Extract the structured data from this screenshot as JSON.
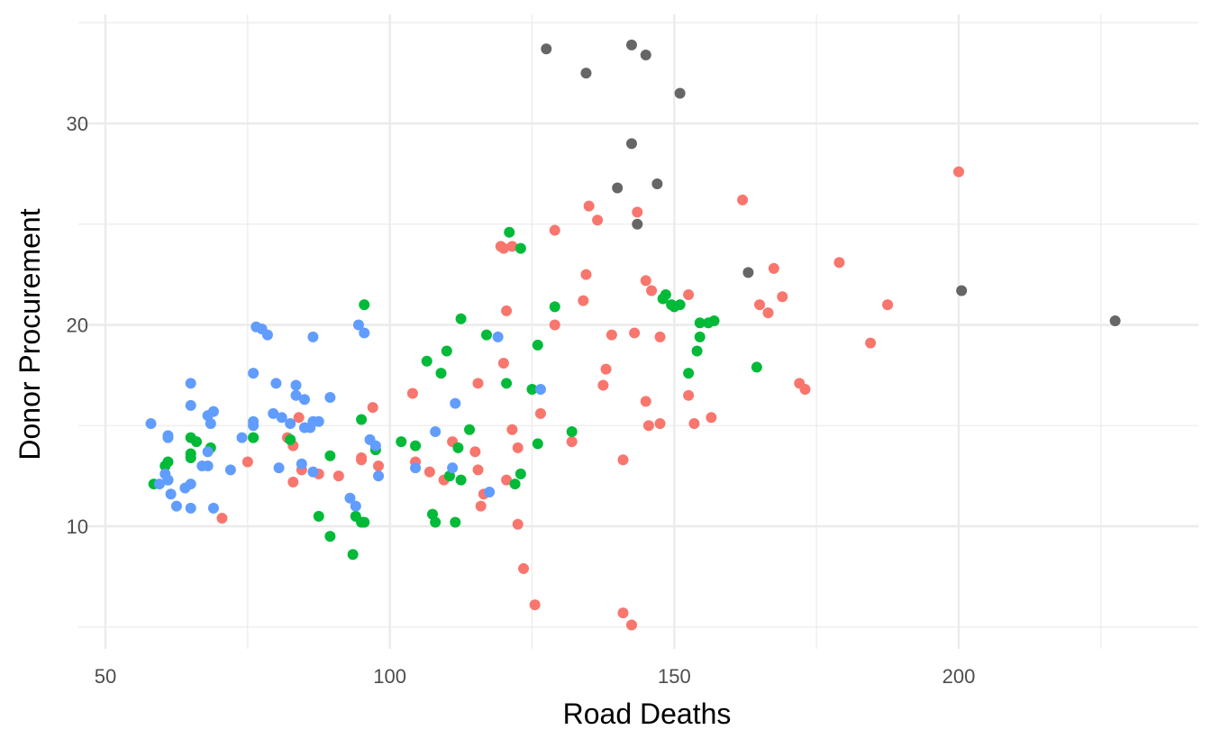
{
  "chart_data": {
    "type": "scatter",
    "title": "",
    "xlabel": "Road Deaths",
    "ylabel": "Donor Procurement",
    "xlim": [
      50,
      240
    ],
    "ylim": [
      4.5,
      35.0
    ],
    "x_ticks": [
      50,
      100,
      150,
      200
    ],
    "y_ticks": [
      10,
      20,
      30
    ],
    "x_tick_labels": [
      "50",
      "100",
      "150",
      "200"
    ],
    "y_tick_labels": [
      "10",
      "20",
      "30"
    ],
    "grid": true,
    "legend": "none",
    "colors": {
      "red": "#F8766D",
      "green": "#00BA38",
      "blue": "#619CFF",
      "grey": "#666666",
      "grid": "#ebebeb"
    },
    "series": [
      {
        "color": "#666666",
        "points": [
          [
            127.5,
            33.7
          ],
          [
            142.5,
            33.9
          ],
          [
            145.0,
            33.4
          ],
          [
            134.5,
            32.5
          ],
          [
            151.0,
            31.5
          ],
          [
            142.5,
            29.0
          ],
          [
            147.0,
            27.0
          ],
          [
            140.0,
            26.8
          ],
          [
            143.5,
            25.0
          ],
          [
            163.0,
            22.6
          ],
          [
            200.5,
            21.7
          ],
          [
            227.5,
            20.2
          ]
        ]
      },
      {
        "color": "#F8766D",
        "points": [
          [
            200.0,
            27.6
          ],
          [
            162.0,
            26.2
          ],
          [
            135.0,
            25.9
          ],
          [
            143.5,
            25.6
          ],
          [
            136.5,
            25.2
          ],
          [
            129.0,
            24.7
          ],
          [
            119.5,
            23.9
          ],
          [
            120.0,
            23.8
          ],
          [
            121.5,
            23.9
          ],
          [
            179.0,
            23.1
          ],
          [
            167.5,
            22.8
          ],
          [
            134.5,
            22.5
          ],
          [
            145.0,
            22.2
          ],
          [
            146.0,
            21.7
          ],
          [
            152.5,
            21.5
          ],
          [
            169.0,
            21.4
          ],
          [
            134.0,
            21.2
          ],
          [
            165.0,
            21.0
          ],
          [
            187.5,
            21.0
          ],
          [
            120.5,
            20.7
          ],
          [
            166.5,
            20.6
          ],
          [
            129.0,
            20.0
          ],
          [
            143.0,
            19.6
          ],
          [
            139.0,
            19.5
          ],
          [
            147.5,
            19.4
          ],
          [
            184.5,
            19.1
          ],
          [
            120.0,
            18.1
          ],
          [
            138.0,
            17.8
          ],
          [
            115.5,
            17.1
          ],
          [
            137.5,
            17.0
          ],
          [
            172.0,
            17.1
          ],
          [
            173.0,
            16.8
          ],
          [
            104.0,
            16.6
          ],
          [
            152.5,
            16.5
          ],
          [
            145.0,
            16.2
          ],
          [
            97.0,
            15.9
          ],
          [
            126.5,
            15.6
          ],
          [
            84.0,
            15.4
          ],
          [
            156.5,
            15.4
          ],
          [
            153.5,
            15.1
          ],
          [
            147.5,
            15.1
          ],
          [
            145.5,
            15.0
          ],
          [
            121.5,
            14.8
          ],
          [
            82.0,
            14.4
          ],
          [
            83.0,
            14.0
          ],
          [
            111.0,
            14.2
          ],
          [
            132.0,
            14.2
          ],
          [
            122.5,
            13.9
          ],
          [
            115.0,
            13.7
          ],
          [
            104.5,
            13.2
          ],
          [
            75.0,
            13.2
          ],
          [
            95.0,
            13.4
          ],
          [
            95.0,
            13.3
          ],
          [
            98.0,
            13.0
          ],
          [
            84.5,
            12.8
          ],
          [
            115.5,
            12.8
          ],
          [
            107.0,
            12.7
          ],
          [
            87.5,
            12.6
          ],
          [
            91.0,
            12.5
          ],
          [
            109.5,
            12.3
          ],
          [
            120.5,
            12.3
          ],
          [
            141.0,
            13.3
          ],
          [
            83.0,
            12.2
          ],
          [
            116.5,
            11.6
          ],
          [
            116.0,
            11.0
          ],
          [
            70.5,
            10.4
          ],
          [
            122.5,
            10.1
          ],
          [
            123.5,
            7.9
          ],
          [
            125.5,
            6.1
          ],
          [
            141.0,
            5.7
          ],
          [
            142.5,
            5.1
          ]
        ]
      },
      {
        "color": "#00BA38",
        "points": [
          [
            121.0,
            24.6
          ],
          [
            123.0,
            23.8
          ],
          [
            95.5,
            21.0
          ],
          [
            129.0,
            20.9
          ],
          [
            148.0,
            21.3
          ],
          [
            148.5,
            21.5
          ],
          [
            149.5,
            21.0
          ],
          [
            150.0,
            20.9
          ],
          [
            151.0,
            21.0
          ],
          [
            112.5,
            20.3
          ],
          [
            154.5,
            20.1
          ],
          [
            156.0,
            20.1
          ],
          [
            157.0,
            20.2
          ],
          [
            117.0,
            19.5
          ],
          [
            154.5,
            19.4
          ],
          [
            126.0,
            19.0
          ],
          [
            110.0,
            18.7
          ],
          [
            154.0,
            18.7
          ],
          [
            106.5,
            18.2
          ],
          [
            109.0,
            17.6
          ],
          [
            152.5,
            17.6
          ],
          [
            164.5,
            17.9
          ],
          [
            120.5,
            17.1
          ],
          [
            125.0,
            16.8
          ],
          [
            95.0,
            15.3
          ],
          [
            114.0,
            14.8
          ],
          [
            132.0,
            14.7
          ],
          [
            76.0,
            14.4
          ],
          [
            76.0,
            14.4
          ],
          [
            65.0,
            14.4
          ],
          [
            66.0,
            14.2
          ],
          [
            82.5,
            14.3
          ],
          [
            102.0,
            14.2
          ],
          [
            104.5,
            14.0
          ],
          [
            126.0,
            14.1
          ],
          [
            68.5,
            13.9
          ],
          [
            112.0,
            13.9
          ],
          [
            65.0,
            13.6
          ],
          [
            65.0,
            13.4
          ],
          [
            97.5,
            13.8
          ],
          [
            89.5,
            13.5
          ],
          [
            61.0,
            13.2
          ],
          [
            60.5,
            13.0
          ],
          [
            61.0,
            12.3
          ],
          [
            110.5,
            12.5
          ],
          [
            112.5,
            12.3
          ],
          [
            123.0,
            12.6
          ],
          [
            122.0,
            12.1
          ],
          [
            58.5,
            12.1
          ],
          [
            87.5,
            10.5
          ],
          [
            107.5,
            10.6
          ],
          [
            108.0,
            10.2
          ],
          [
            111.5,
            10.2
          ],
          [
            94.0,
            10.5
          ],
          [
            95.0,
            10.2
          ],
          [
            95.5,
            10.2
          ],
          [
            89.5,
            9.5
          ],
          [
            93.5,
            8.6
          ]
        ]
      },
      {
        "color": "#619CFF",
        "points": [
          [
            76.5,
            19.9
          ],
          [
            77.5,
            19.8
          ],
          [
            78.5,
            19.5
          ],
          [
            94.5,
            20.0
          ],
          [
            95.5,
            19.6
          ],
          [
            86.5,
            19.4
          ],
          [
            119.0,
            19.4
          ],
          [
            76.0,
            17.6
          ],
          [
            80.0,
            17.1
          ],
          [
            83.5,
            17.0
          ],
          [
            65.0,
            17.1
          ],
          [
            83.5,
            16.5
          ],
          [
            85.0,
            16.3
          ],
          [
            89.5,
            16.4
          ],
          [
            65.0,
            16.0
          ],
          [
            111.5,
            16.1
          ],
          [
            69.0,
            15.7
          ],
          [
            68.0,
            15.5
          ],
          [
            79.5,
            15.6
          ],
          [
            81.0,
            15.4
          ],
          [
            82.5,
            15.1
          ],
          [
            68.5,
            15.1
          ],
          [
            76.0,
            15.2
          ],
          [
            76.0,
            15.0
          ],
          [
            85.0,
            14.9
          ],
          [
            86.0,
            14.9
          ],
          [
            86.5,
            15.2
          ],
          [
            87.5,
            15.2
          ],
          [
            58.0,
            15.1
          ],
          [
            61.0,
            14.5
          ],
          [
            61.0,
            14.4
          ],
          [
            74.0,
            14.4
          ],
          [
            96.5,
            14.3
          ],
          [
            97.5,
            14.0
          ],
          [
            108.0,
            14.7
          ],
          [
            126.5,
            16.8
          ],
          [
            68.0,
            13.7
          ],
          [
            67.0,
            13.0
          ],
          [
            68.0,
            13.0
          ],
          [
            72.0,
            12.8
          ],
          [
            80.5,
            12.9
          ],
          [
            84.5,
            13.1
          ],
          [
            86.5,
            12.7
          ],
          [
            98.0,
            12.5
          ],
          [
            104.5,
            12.9
          ],
          [
            111.0,
            12.9
          ],
          [
            60.5,
            12.6
          ],
          [
            61.0,
            12.3
          ],
          [
            59.5,
            12.1
          ],
          [
            65.0,
            12.1
          ],
          [
            64.0,
            11.9
          ],
          [
            61.5,
            11.6
          ],
          [
            93.0,
            11.4
          ],
          [
            117.5,
            11.7
          ],
          [
            62.5,
            11.0
          ],
          [
            65.0,
            10.9
          ],
          [
            69.0,
            10.9
          ],
          [
            94.0,
            11.0
          ]
        ]
      }
    ]
  }
}
